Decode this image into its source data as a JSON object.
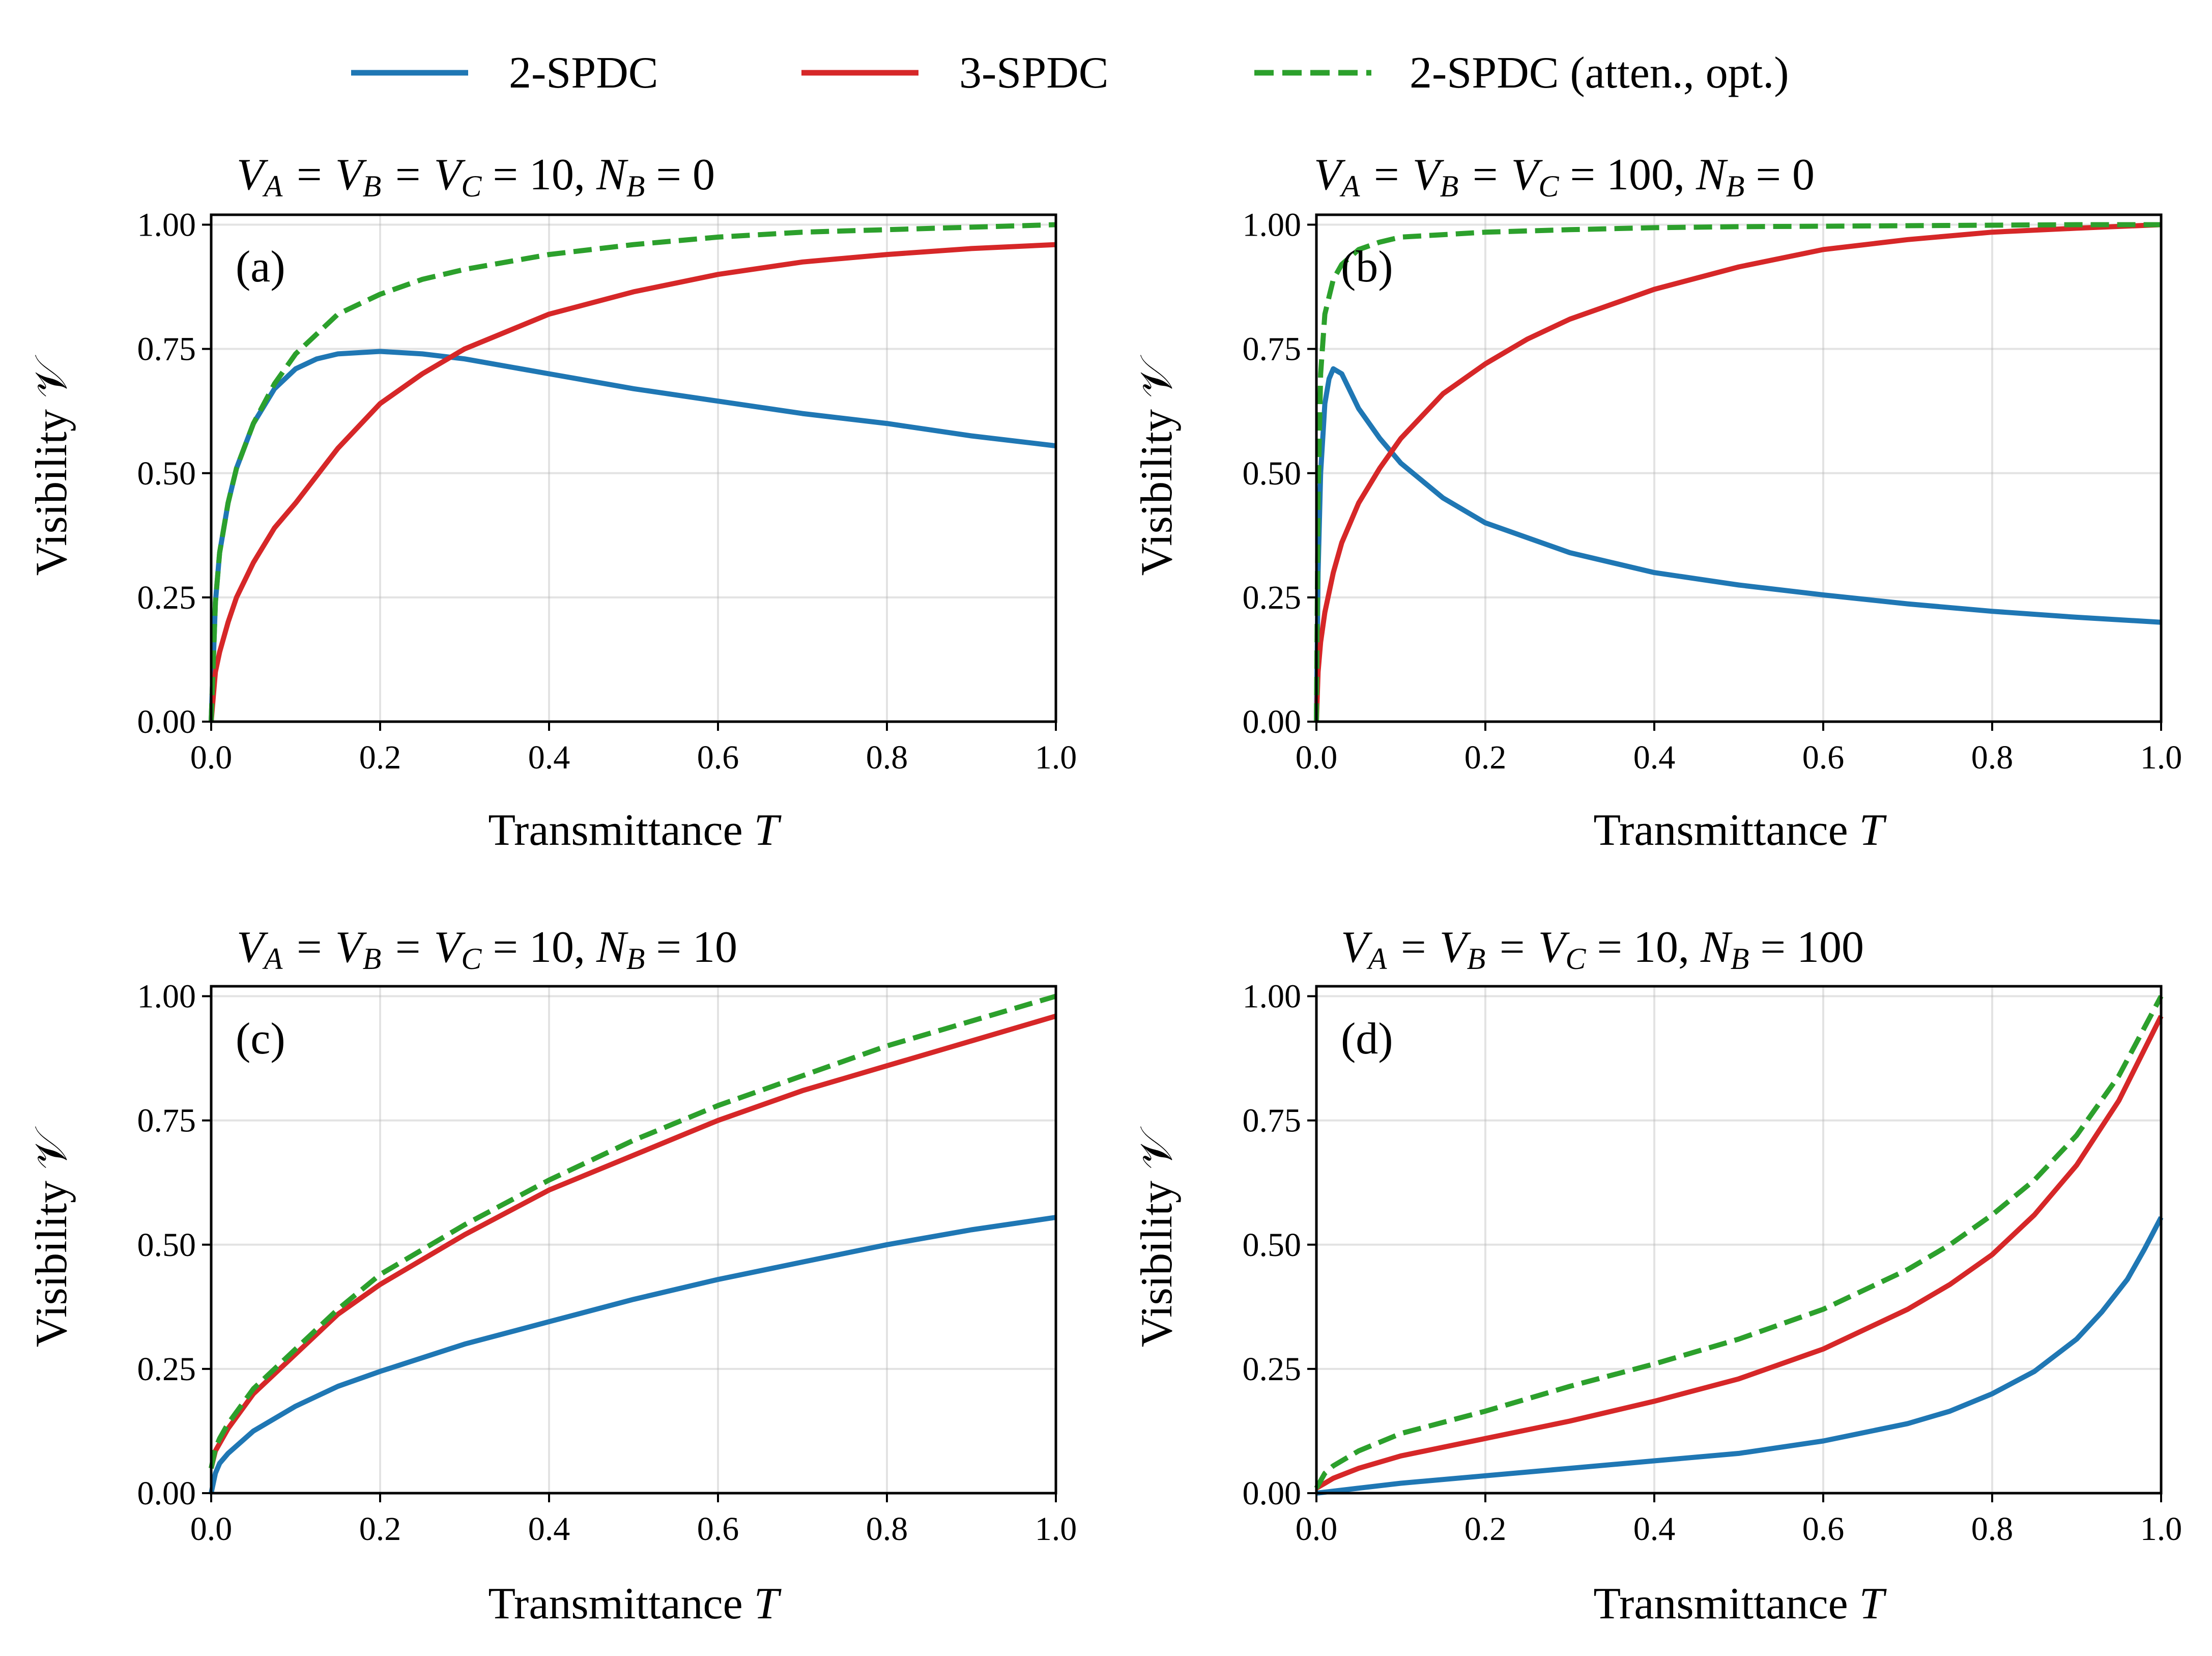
{
  "figure": {
    "legend": [
      {
        "label": "2-SPDC",
        "color": "#1f77b4",
        "style": "solid"
      },
      {
        "label": "3-SPDC",
        "color": "#d62728",
        "style": "solid"
      },
      {
        "label": "2-SPDC (atten., opt.)",
        "color": "#2ca02c",
        "style": "dashed"
      }
    ]
  },
  "chart_data": [
    {
      "type": "line",
      "panel": "(a)",
      "title": "V_A = V_B = V_C = 10, N_B = 0",
      "xlabel": "Transmittance T",
      "ylabel": "Visibility 𝒱",
      "xlim": [
        0.0,
        1.0
      ],
      "ylim": [
        0.0,
        1.02
      ],
      "xticks": [
        "0.0",
        "0.2",
        "0.4",
        "0.6",
        "0.8",
        "1.0"
      ],
      "yticks": [
        "0.00",
        "0.25",
        "0.50",
        "0.75",
        "1.00"
      ],
      "grid": true,
      "series": [
        {
          "name": "2-SPDC",
          "color": "#1f77b4",
          "dashed": false,
          "x": [
            0,
            0.005,
            0.01,
            0.02,
            0.03,
            0.05,
            0.075,
            0.1,
            0.125,
            0.15,
            0.2,
            0.25,
            0.3,
            0.4,
            0.5,
            0.6,
            0.7,
            0.8,
            0.9,
            1.0
          ],
          "y": [
            0,
            0.24,
            0.34,
            0.44,
            0.51,
            0.6,
            0.67,
            0.71,
            0.73,
            0.74,
            0.745,
            0.74,
            0.73,
            0.7,
            0.67,
            0.645,
            0.62,
            0.6,
            0.575,
            0.555
          ]
        },
        {
          "name": "3-SPDC",
          "color": "#d62728",
          "dashed": false,
          "x": [
            0,
            0.005,
            0.01,
            0.02,
            0.03,
            0.05,
            0.075,
            0.1,
            0.15,
            0.2,
            0.25,
            0.3,
            0.4,
            0.5,
            0.6,
            0.7,
            0.8,
            0.9,
            1.0
          ],
          "y": [
            0,
            0.1,
            0.14,
            0.2,
            0.25,
            0.32,
            0.39,
            0.44,
            0.55,
            0.64,
            0.7,
            0.75,
            0.82,
            0.865,
            0.9,
            0.925,
            0.94,
            0.952,
            0.96
          ]
        },
        {
          "name": "2-SPDC (atten., opt.)",
          "color": "#2ca02c",
          "dashed": true,
          "x": [
            0,
            0.005,
            0.01,
            0.02,
            0.03,
            0.05,
            0.075,
            0.1,
            0.15,
            0.2,
            0.25,
            0.3,
            0.4,
            0.5,
            0.6,
            0.7,
            0.8,
            0.9,
            1.0
          ],
          "y": [
            0,
            0.24,
            0.34,
            0.44,
            0.51,
            0.6,
            0.68,
            0.74,
            0.82,
            0.86,
            0.89,
            0.91,
            0.94,
            0.96,
            0.975,
            0.985,
            0.99,
            0.995,
            1.0
          ]
        }
      ]
    },
    {
      "type": "line",
      "panel": "(b)",
      "title": "V_A = V_B = V_C = 100, N_B = 0",
      "xlabel": "Transmittance T",
      "ylabel": "Visibility 𝒱",
      "xlim": [
        0.0,
        1.0
      ],
      "ylim": [
        0.0,
        1.02
      ],
      "xticks": [
        "0.0",
        "0.2",
        "0.4",
        "0.6",
        "0.8",
        "1.0"
      ],
      "yticks": [
        "0.00",
        "0.25",
        "0.50",
        "0.75",
        "1.00"
      ],
      "grid": true,
      "series": [
        {
          "name": "2-SPDC",
          "color": "#1f77b4",
          "dashed": false,
          "x": [
            0,
            0.002,
            0.005,
            0.01,
            0.015,
            0.02,
            0.03,
            0.05,
            0.075,
            0.1,
            0.15,
            0.2,
            0.3,
            0.4,
            0.5,
            0.6,
            0.7,
            0.8,
            0.9,
            1.0
          ],
          "y": [
            0,
            0.3,
            0.5,
            0.64,
            0.69,
            0.71,
            0.7,
            0.63,
            0.57,
            0.52,
            0.45,
            0.4,
            0.34,
            0.3,
            0.275,
            0.255,
            0.237,
            0.222,
            0.21,
            0.2
          ]
        },
        {
          "name": "3-SPDC",
          "color": "#d62728",
          "dashed": false,
          "x": [
            0,
            0.002,
            0.005,
            0.01,
            0.02,
            0.03,
            0.05,
            0.075,
            0.1,
            0.15,
            0.2,
            0.25,
            0.3,
            0.4,
            0.5,
            0.6,
            0.7,
            0.8,
            0.9,
            1.0
          ],
          "y": [
            0,
            0.1,
            0.16,
            0.22,
            0.3,
            0.36,
            0.44,
            0.51,
            0.57,
            0.66,
            0.72,
            0.77,
            0.81,
            0.87,
            0.915,
            0.95,
            0.97,
            0.985,
            0.993,
            1.0
          ]
        },
        {
          "name": "2-SPDC (atten., opt.)",
          "color": "#2ca02c",
          "dashed": true,
          "x": [
            0,
            0.002,
            0.005,
            0.01,
            0.02,
            0.03,
            0.05,
            0.075,
            0.1,
            0.15,
            0.2,
            0.3,
            0.4,
            0.5,
            0.6,
            0.7,
            0.8,
            0.9,
            1.0
          ],
          "y": [
            0,
            0.45,
            0.7,
            0.82,
            0.89,
            0.92,
            0.95,
            0.965,
            0.975,
            0.98,
            0.985,
            0.99,
            0.994,
            0.996,
            0.997,
            0.998,
            0.999,
            1.0,
            1.0
          ]
        }
      ]
    },
    {
      "type": "line",
      "panel": "(c)",
      "title": "V_A = V_B = V_C = 10, N_B = 10",
      "xlabel": "Transmittance T",
      "ylabel": "Visibility 𝒱",
      "xlim": [
        0.0,
        1.0
      ],
      "ylim": [
        0.0,
        1.02
      ],
      "xticks": [
        "0.0",
        "0.2",
        "0.4",
        "0.6",
        "0.8",
        "1.0"
      ],
      "yticks": [
        "0.00",
        "0.25",
        "0.50",
        "0.75",
        "1.00"
      ],
      "grid": true,
      "series": [
        {
          "name": "2-SPDC",
          "color": "#1f77b4",
          "dashed": false,
          "x": [
            0,
            0.005,
            0.01,
            0.02,
            0.05,
            0.1,
            0.15,
            0.2,
            0.3,
            0.4,
            0.5,
            0.6,
            0.7,
            0.8,
            0.9,
            1.0
          ],
          "y": [
            0,
            0.04,
            0.06,
            0.08,
            0.125,
            0.175,
            0.215,
            0.245,
            0.3,
            0.345,
            0.39,
            0.43,
            0.465,
            0.5,
            0.53,
            0.555
          ]
        },
        {
          "name": "3-SPDC",
          "color": "#d62728",
          "dashed": false,
          "x": [
            0,
            0.005,
            0.01,
            0.02,
            0.05,
            0.1,
            0.15,
            0.2,
            0.3,
            0.4,
            0.5,
            0.6,
            0.7,
            0.8,
            0.9,
            1.0
          ],
          "y": [
            0.05,
            0.085,
            0.1,
            0.13,
            0.2,
            0.28,
            0.36,
            0.42,
            0.52,
            0.61,
            0.68,
            0.75,
            0.81,
            0.86,
            0.91,
            0.96
          ]
        },
        {
          "name": "2-SPDC (atten., opt.)",
          "color": "#2ca02c",
          "dashed": true,
          "x": [
            0,
            0.005,
            0.01,
            0.02,
            0.05,
            0.1,
            0.15,
            0.2,
            0.3,
            0.4,
            0.5,
            0.6,
            0.7,
            0.8,
            0.9,
            1.0
          ],
          "y": [
            0.05,
            0.09,
            0.11,
            0.14,
            0.21,
            0.29,
            0.37,
            0.44,
            0.54,
            0.63,
            0.71,
            0.78,
            0.84,
            0.9,
            0.95,
            1.0
          ]
        }
      ]
    },
    {
      "type": "line",
      "panel": "(d)",
      "title": "V_A = V_B = V_C = 10, N_B = 100",
      "xlabel": "Transmittance T",
      "ylabel": "Visibility 𝒱",
      "xlim": [
        0.0,
        1.0
      ],
      "ylim": [
        0.0,
        1.02
      ],
      "xticks": [
        "0.0",
        "0.2",
        "0.4",
        "0.6",
        "0.8",
        "1.0"
      ],
      "yticks": [
        "0.00",
        "0.25",
        "0.50",
        "0.75",
        "1.00"
      ],
      "grid": true,
      "series": [
        {
          "name": "2-SPDC",
          "color": "#1f77b4",
          "dashed": false,
          "x": [
            0,
            0.05,
            0.1,
            0.2,
            0.3,
            0.4,
            0.5,
            0.6,
            0.7,
            0.75,
            0.8,
            0.85,
            0.9,
            0.93,
            0.96,
            0.98,
            1.0
          ],
          "y": [
            0,
            0.01,
            0.02,
            0.035,
            0.05,
            0.065,
            0.08,
            0.105,
            0.14,
            0.165,
            0.2,
            0.245,
            0.31,
            0.365,
            0.43,
            0.49,
            0.555
          ]
        },
        {
          "name": "3-SPDC",
          "color": "#d62728",
          "dashed": false,
          "x": [
            0,
            0.01,
            0.02,
            0.05,
            0.1,
            0.2,
            0.3,
            0.4,
            0.5,
            0.6,
            0.7,
            0.75,
            0.8,
            0.85,
            0.9,
            0.95,
            1.0
          ],
          "y": [
            0.01,
            0.02,
            0.03,
            0.05,
            0.075,
            0.11,
            0.145,
            0.185,
            0.23,
            0.29,
            0.37,
            0.42,
            0.48,
            0.56,
            0.66,
            0.79,
            0.96
          ]
        },
        {
          "name": "2-SPDC (atten., opt.)",
          "color": "#2ca02c",
          "dashed": true,
          "x": [
            0,
            0.01,
            0.02,
            0.05,
            0.1,
            0.2,
            0.3,
            0.4,
            0.5,
            0.6,
            0.7,
            0.75,
            0.8,
            0.85,
            0.9,
            0.95,
            1.0
          ],
          "y": [
            0.01,
            0.04,
            0.055,
            0.085,
            0.12,
            0.165,
            0.215,
            0.26,
            0.31,
            0.37,
            0.45,
            0.5,
            0.56,
            0.63,
            0.72,
            0.84,
            1.0
          ]
        }
      ]
    }
  ]
}
